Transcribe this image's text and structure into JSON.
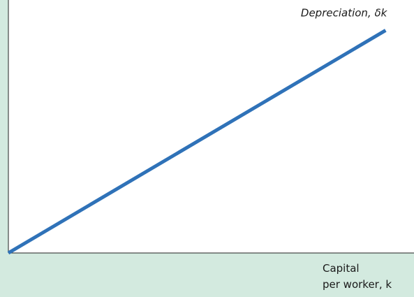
{
  "chart_data": {
    "type": "line",
    "x": [
      0,
      93
    ],
    "series": [
      {
        "name": "Depreciation, δk",
        "color": "#2f72b8",
        "values": [
          0,
          88
        ]
      }
    ],
    "xlim": [
      0,
      100
    ],
    "ylim": [
      0,
      100
    ],
    "x_label": [
      "Capital",
      "per worker, k"
    ]
  }
}
